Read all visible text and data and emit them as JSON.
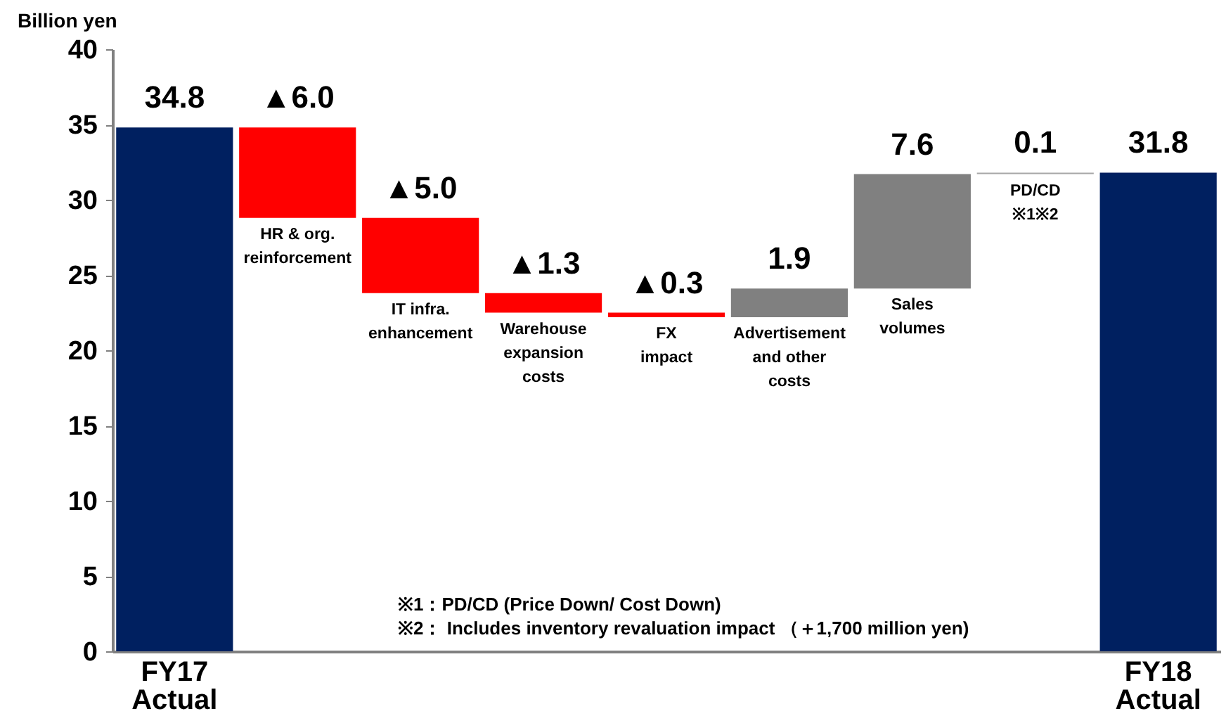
{
  "chart_data": {
    "type": "bar",
    "categories": [
      "FY17\nActual",
      "HR & org.\nreinforcement",
      "IT infra.\nenhancement",
      "Warehouse\nexpansion\ncosts",
      "FX\nimpact",
      "Advertisement\nand other\ncosts",
      "Sales\nvolumes",
      "PD/CD\n※1※2",
      "FY18\nActual"
    ],
    "values": [
      34.8,
      -6.0,
      -5.0,
      -1.3,
      -0.3,
      1.9,
      7.6,
      0.1,
      31.8
    ],
    "base": [
      0,
      34.8,
      28.8,
      23.8,
      22.5,
      22.2,
      24.1,
      31.7,
      0
    ],
    "colors": [
      "#002060",
      "#ff0000",
      "#ff0000",
      "#ff0000",
      "#ff0000",
      "#808080",
      "#808080",
      "#a6a6a6",
      "#002060"
    ],
    "value_labels": [
      "34.8",
      "▲6.0",
      "▲5.0",
      "▲1.3",
      "▲0.3",
      "1.9",
      "7.6",
      "0.1",
      "31.8"
    ],
    "ylabel": "Billion yen",
    "ylim": [
      0,
      40
    ],
    "yticks": [
      0,
      5,
      10,
      15,
      20,
      25,
      30,
      35,
      40
    ],
    "grid": false,
    "annotations": [
      "※1：PD/CD (Price Down/ Cost Down)",
      "※2： Includes inventory revaluation impact  （＋1,700 million yen)"
    ]
  }
}
